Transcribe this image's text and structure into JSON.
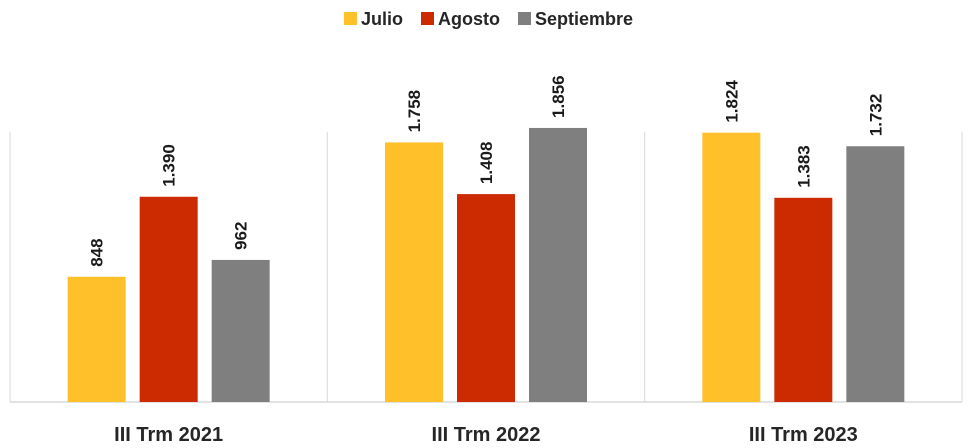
{
  "chart_data": {
    "type": "bar",
    "title": "",
    "xlabel": "",
    "ylabel": "",
    "categories": [
      "III Trm 2021",
      "III Trm 2022",
      "III Trm 2023"
    ],
    "series": [
      {
        "name": "Julio",
        "color": "#FFC02A",
        "values": [
          848,
          1758,
          1824
        ],
        "labels": [
          "848",
          "1.758",
          "1.824"
        ]
      },
      {
        "name": "Agosto",
        "color": "#CC2A00",
        "values": [
          1390,
          1408,
          1383
        ],
        "labels": [
          "1.390",
          "1.408",
          "1.383"
        ]
      },
      {
        "name": "Septiembre",
        "color": "#7F7F7F",
        "values": [
          962,
          1856,
          1732
        ],
        "labels": [
          "962",
          "1.856",
          "1.732"
        ]
      }
    ],
    "ylim": [
      0,
      2350
    ],
    "grid": false,
    "legend": "top-center",
    "axis_color": "#D9D9D9"
  }
}
